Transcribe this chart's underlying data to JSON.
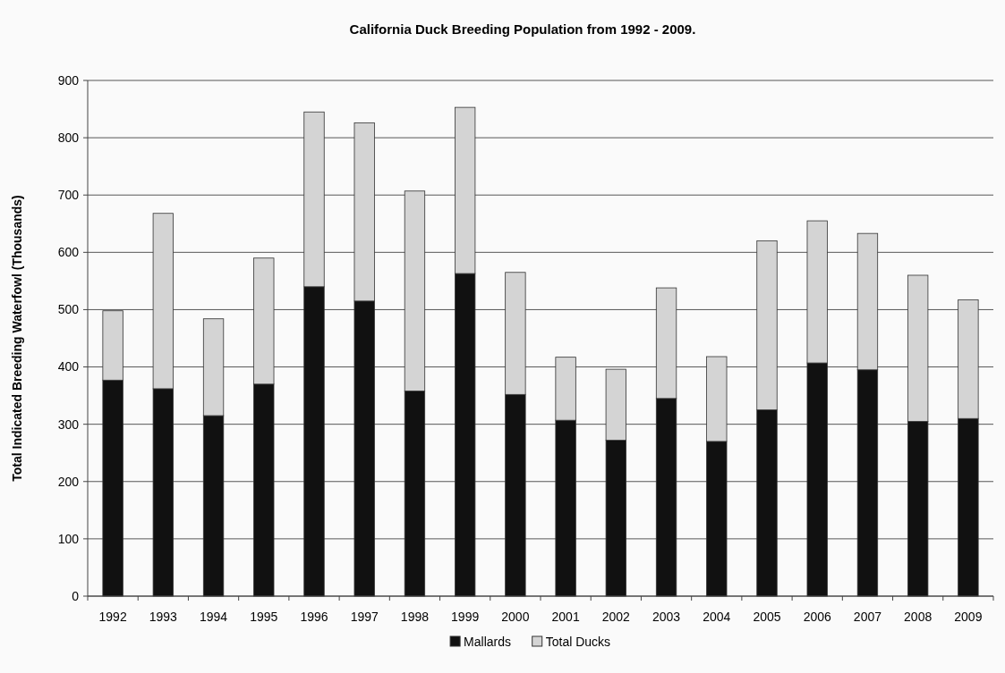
{
  "chart_data": {
    "type": "bar",
    "title": "California Duck Breeding Population from 1992 - 2009.",
    "ylabel": "Total Indicated Breeding Waterfowl (Thousands)",
    "categories": [
      "1992",
      "1993",
      "1994",
      "1995",
      "1996",
      "1997",
      "1998",
      "1999",
      "2000",
      "2001",
      "2002",
      "2003",
      "2004",
      "2005",
      "2006",
      "2007",
      "2008",
      "2009"
    ],
    "stacked": true,
    "series": [
      {
        "name": "Mallards",
        "color": "#111111",
        "values": [
          377,
          362,
          315,
          370,
          540,
          515,
          358,
          563,
          352,
          307,
          272,
          345,
          270,
          325,
          407,
          395,
          305,
          310
        ]
      },
      {
        "name": "Total Ducks",
        "color": "#d4d4d4",
        "values": [
          121,
          306,
          169,
          220,
          305,
          311,
          349,
          290,
          213,
          110,
          124,
          193,
          148,
          295,
          248,
          238,
          255,
          207
        ]
      }
    ],
    "ylim": [
      0,
      900
    ],
    "yticks": [
      0,
      100,
      200,
      300,
      400,
      500,
      600,
      700,
      800,
      900
    ],
    "grid": "y",
    "legend": "bottom"
  }
}
